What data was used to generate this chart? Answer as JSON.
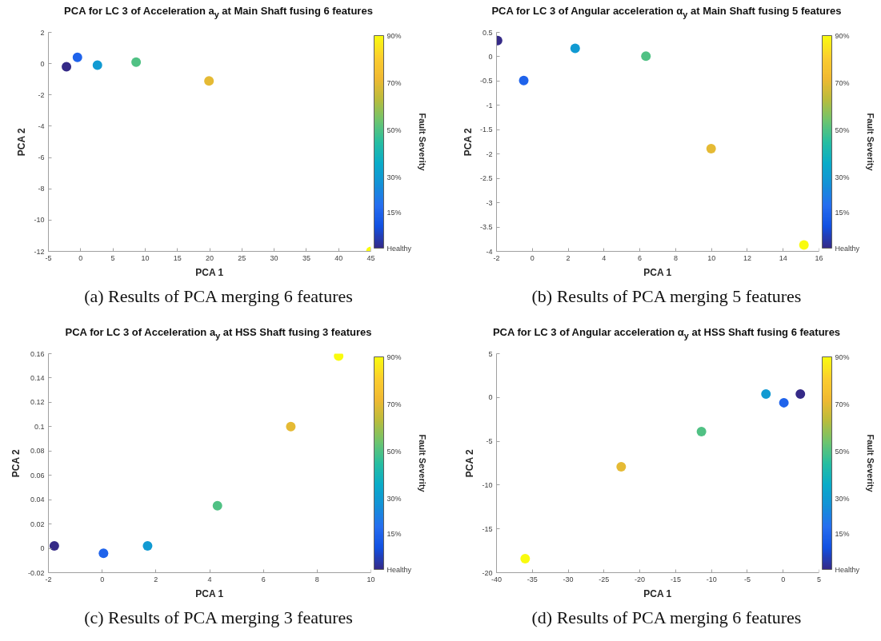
{
  "chart_data": [
    {
      "type": "scatter",
      "title": "PCA for LC 3 of Acceleration a$_{y}$ at Main Shaft fusing 6 features",
      "xlabel": "PCA 1",
      "ylabel": "PCA 2",
      "clabel": "Fault Severity",
      "annotations": [
        "(a) Results of PCA merging 6 features"
      ],
      "x": [
        -2.2,
        -0.5,
        2.6,
        8.6,
        19.9,
        45.0
      ],
      "values": [
        -0.2,
        0.4,
        -0.1,
        0.1,
        -1.1,
        -12.0
      ],
      "cvalues": [
        0,
        15,
        30,
        50,
        70,
        90
      ],
      "xlim": [
        -5,
        45
      ],
      "ylim": [
        -12,
        2
      ],
      "xticks": [
        -5,
        0,
        5,
        10,
        15,
        20,
        25,
        30,
        35,
        40,
        45
      ],
      "yticks": [
        -12,
        -10,
        -8,
        -6,
        -4,
        -2,
        0,
        2
      ],
      "clim": [
        0,
        90
      ],
      "cticks": [
        {
          "value": 0,
          "label": "Healthy"
        },
        {
          "value": 15,
          "label": "15%"
        },
        {
          "value": 30,
          "label": "30%"
        },
        {
          "value": 50,
          "label": "50%"
        },
        {
          "value": 70,
          "label": "70%"
        },
        {
          "value": 90,
          "label": "90%"
        }
      ],
      "marker": "circle"
    },
    {
      "type": "scatter",
      "title": "PCA for LC 3 of Angular acceleration α$_{y}$ at Main Shaft fusing 5 features",
      "xlabel": "PCA 1",
      "ylabel": "PCA 2",
      "clabel": "Fault Severity",
      "annotations": [
        "(b) Results of PCA merging 5 features"
      ],
      "x": [
        -1.94,
        -0.48,
        2.39,
        6.34,
        9.98,
        15.16
      ],
      "values": [
        0.33,
        -0.49,
        0.17,
        0.01,
        -1.89,
        -3.87
      ],
      "cvalues": [
        0,
        15,
        30,
        50,
        70,
        90
      ],
      "xlim": [
        -2,
        16
      ],
      "ylim": [
        -4,
        0.5
      ],
      "xticks": [
        -2,
        0,
        2,
        4,
        6,
        8,
        10,
        12,
        14,
        16
      ],
      "yticks": [
        -4,
        -3.5,
        -3,
        -2.5,
        -2,
        -1.5,
        -1,
        -0.5,
        0,
        0.5
      ],
      "clim": [
        0,
        90
      ],
      "cticks": [
        {
          "value": 0,
          "label": "Healthy"
        },
        {
          "value": 15,
          "label": "15%"
        },
        {
          "value": 30,
          "label": "30%"
        },
        {
          "value": 50,
          "label": "50%"
        },
        {
          "value": 70,
          "label": "70%"
        },
        {
          "value": 90,
          "label": "90%"
        }
      ],
      "marker": "circle"
    },
    {
      "type": "scatter",
      "title": "PCA for LC 3 of Acceleration a$_{y}$ at HSS Shaft fusing 3 features",
      "xlabel": "PCA 1",
      "ylabel": "PCA 2",
      "clabel": "Fault Severity",
      "annotations": [
        "(c) Results of PCA merging 3 features"
      ],
      "x": [
        -1.78,
        0.05,
        1.69,
        4.29,
        7.02,
        8.8
      ],
      "values": [
        0.002,
        -0.004,
        0.002,
        0.035,
        0.1,
        0.158
      ],
      "cvalues": [
        0,
        15,
        30,
        50,
        70,
        90
      ],
      "xlim": [
        -2,
        10
      ],
      "ylim": [
        -0.02,
        0.16
      ],
      "xticks": [
        -2,
        0,
        2,
        4,
        6,
        8,
        10
      ],
      "yticks": [
        -0.02,
        0,
        0.02,
        0.04,
        0.06,
        0.08,
        0.1,
        0.12,
        0.14,
        0.16
      ],
      "clim": [
        0,
        90
      ],
      "cticks": [
        {
          "value": 0,
          "label": "Healthy"
        },
        {
          "value": 15,
          "label": "15%"
        },
        {
          "value": 30,
          "label": "30%"
        },
        {
          "value": 50,
          "label": "50%"
        },
        {
          "value": 70,
          "label": "70%"
        },
        {
          "value": 90,
          "label": "90%"
        }
      ],
      "marker": "circle"
    },
    {
      "type": "scatter",
      "title": "PCA for LC 3 of Angular acceleration α$_{y}$ at HSS Shaft fusing 6 features",
      "xlabel": "PCA 1",
      "ylabel": "PCA 2",
      "clabel": "Fault Severity",
      "annotations": [
        "(d) Results of PCA merging 6 features"
      ],
      "x": [
        2.4,
        0.1,
        -2.4,
        -11.4,
        -22.6,
        -36.0
      ],
      "values": [
        0.4,
        -0.6,
        0.4,
        -3.9,
        -7.9,
        -18.4
      ],
      "cvalues": [
        0,
        15,
        30,
        50,
        70,
        90
      ],
      "xlim": [
        -40,
        5
      ],
      "ylim": [
        -20,
        5
      ],
      "xticks": [
        -40,
        -35,
        -30,
        -25,
        -20,
        -15,
        -10,
        -5,
        0,
        5
      ],
      "yticks": [
        -20,
        -15,
        -10,
        -5,
        0,
        5
      ],
      "clim": [
        0,
        90
      ],
      "cticks": [
        {
          "value": 0,
          "label": "Healthy"
        },
        {
          "value": 15,
          "label": "15%"
        },
        {
          "value": 30,
          "label": "30%"
        },
        {
          "value": 50,
          "label": "50%"
        },
        {
          "value": 70,
          "label": "70%"
        },
        {
          "value": 90,
          "label": "90%"
        }
      ],
      "marker": "circle"
    }
  ]
}
